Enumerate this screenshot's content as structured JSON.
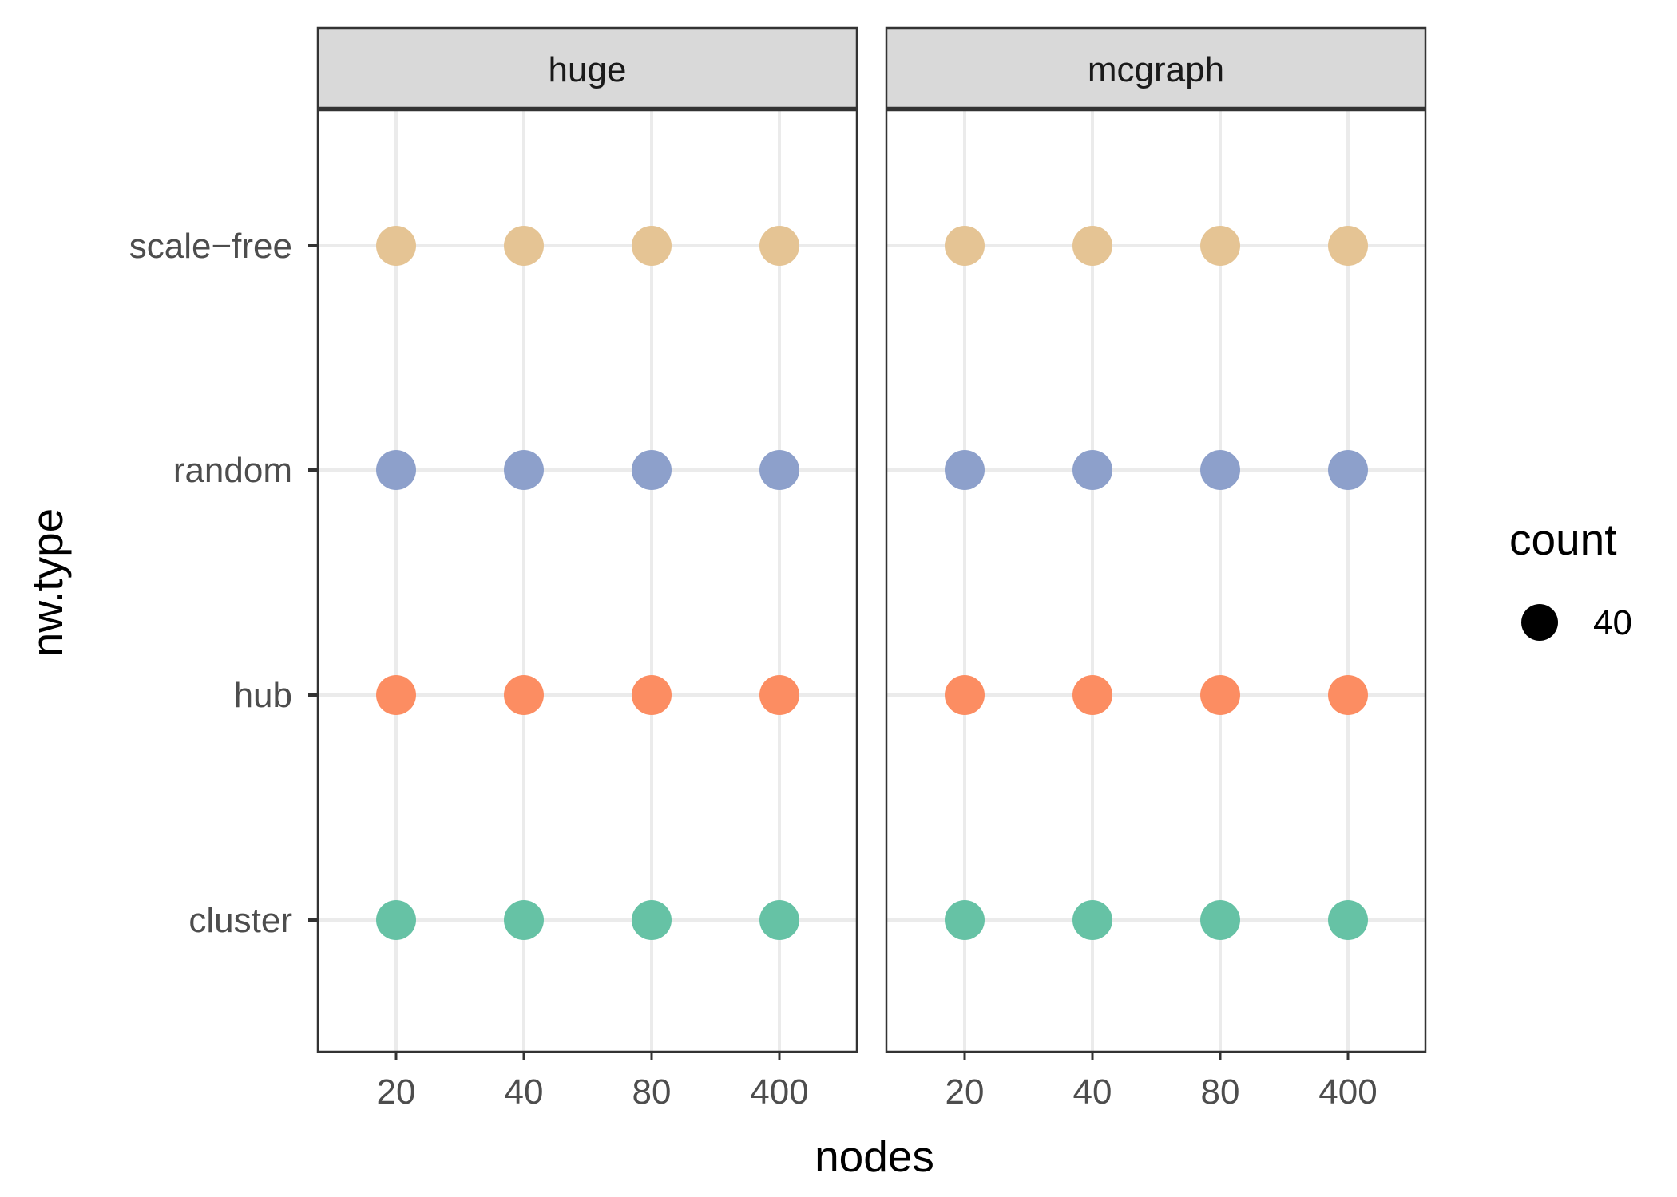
{
  "chart_data": {
    "type": "scatter",
    "xlabel": "nodes",
    "ylabel": "nw.type",
    "x_categories": [
      "20",
      "40",
      "80",
      "400"
    ],
    "y_categories": [
      "cluster",
      "hub",
      "random",
      "scale−free"
    ],
    "facets": [
      {
        "label": "huge",
        "points": [
          {
            "x": "20",
            "y": "cluster",
            "count": 40
          },
          {
            "x": "40",
            "y": "cluster",
            "count": 40
          },
          {
            "x": "80",
            "y": "cluster",
            "count": 40
          },
          {
            "x": "400",
            "y": "cluster",
            "count": 40
          },
          {
            "x": "20",
            "y": "hub",
            "count": 40
          },
          {
            "x": "40",
            "y": "hub",
            "count": 40
          },
          {
            "x": "80",
            "y": "hub",
            "count": 40
          },
          {
            "x": "400",
            "y": "hub",
            "count": 40
          },
          {
            "x": "20",
            "y": "random",
            "count": 40
          },
          {
            "x": "40",
            "y": "random",
            "count": 40
          },
          {
            "x": "80",
            "y": "random",
            "count": 40
          },
          {
            "x": "400",
            "y": "random",
            "count": 40
          },
          {
            "x": "20",
            "y": "scale−free",
            "count": 40
          },
          {
            "x": "40",
            "y": "scale−free",
            "count": 40
          },
          {
            "x": "80",
            "y": "scale−free",
            "count": 40
          },
          {
            "x": "400",
            "y": "scale−free",
            "count": 40
          }
        ]
      },
      {
        "label": "mcgraph",
        "points": [
          {
            "x": "20",
            "y": "cluster",
            "count": 40
          },
          {
            "x": "40",
            "y": "cluster",
            "count": 40
          },
          {
            "x": "80",
            "y": "cluster",
            "count": 40
          },
          {
            "x": "400",
            "y": "cluster",
            "count": 40
          },
          {
            "x": "20",
            "y": "hub",
            "count": 40
          },
          {
            "x": "40",
            "y": "hub",
            "count": 40
          },
          {
            "x": "80",
            "y": "hub",
            "count": 40
          },
          {
            "x": "400",
            "y": "hub",
            "count": 40
          },
          {
            "x": "20",
            "y": "random",
            "count": 40
          },
          {
            "x": "40",
            "y": "random",
            "count": 40
          },
          {
            "x": "80",
            "y": "random",
            "count": 40
          },
          {
            "x": "400",
            "y": "random",
            "count": 40
          },
          {
            "x": "20",
            "y": "scale−free",
            "count": 40
          },
          {
            "x": "40",
            "y": "scale−free",
            "count": 40
          },
          {
            "x": "80",
            "y": "scale−free",
            "count": 40
          },
          {
            "x": "400",
            "y": "scale−free",
            "count": 40
          }
        ]
      }
    ],
    "colors": {
      "cluster": "#66c2a5",
      "hub": "#fc8d62",
      "random": "#8da0cb",
      "scale−free": "#e5c494"
    },
    "legend": {
      "title": "count",
      "entries": [
        {
          "label": "40",
          "value": 40
        }
      ],
      "position": "right"
    },
    "grid": true
  }
}
